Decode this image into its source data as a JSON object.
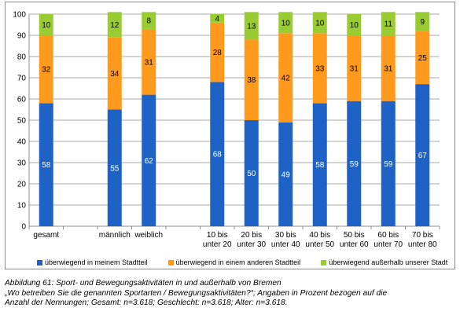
{
  "chart_data": {
    "type": "bar",
    "stacked": true,
    "categories": [
      [
        "gesamt"
      ],
      [
        ""
      ],
      [
        "männlich"
      ],
      [
        "weiblich"
      ],
      [
        ""
      ],
      [
        "10 bis",
        "unter 20"
      ],
      [
        "20 bis",
        "unter 30"
      ],
      [
        "30 bis",
        "unter 40"
      ],
      [
        "40 bis",
        "unter 50"
      ],
      [
        "50 bis",
        "unter 60"
      ],
      [
        "60 bis",
        "unter 70"
      ],
      [
        "70 bis",
        "unter 80"
      ]
    ],
    "series": [
      {
        "name": "überwiegend in meinem Stadtteil",
        "color": "#1f62c6",
        "values": [
          58,
          null,
          55,
          62,
          null,
          68,
          50,
          49,
          58,
          59,
          59,
          67
        ]
      },
      {
        "name": "überwiegend in einem anderen Stadtteil",
        "color": "#ff9a1c",
        "values": [
          32,
          null,
          34,
          31,
          null,
          28,
          38,
          42,
          33,
          31,
          31,
          25
        ]
      },
      {
        "name": "überwiegend außerhalb unserer Stadt",
        "color": "#99cc33",
        "values": [
          10,
          null,
          12,
          8,
          null,
          4,
          13,
          10,
          10,
          10,
          11,
          9
        ]
      }
    ],
    "ylim": [
      0,
      100
    ],
    "yticks": [
      0,
      10,
      20,
      30,
      40,
      50,
      60,
      70,
      80,
      90,
      100
    ],
    "grid": true,
    "legend": "bottom",
    "title": "",
    "xlabel": "",
    "ylabel": ""
  },
  "caption": {
    "line1": "Abbildung 61: Sport- und Bewegungsaktivitäten in und außerhalb von Bremen",
    "line2": "„Wo betreiben Sie die genannten Sportarten / Bewegungsaktivitäten?“; Angaben in Prozent bezogen auf die",
    "line3": "Anzahl der Nennungen; Gesamt: n=3.618; Geschlecht: n=3.618; Alter: n=3.618."
  }
}
